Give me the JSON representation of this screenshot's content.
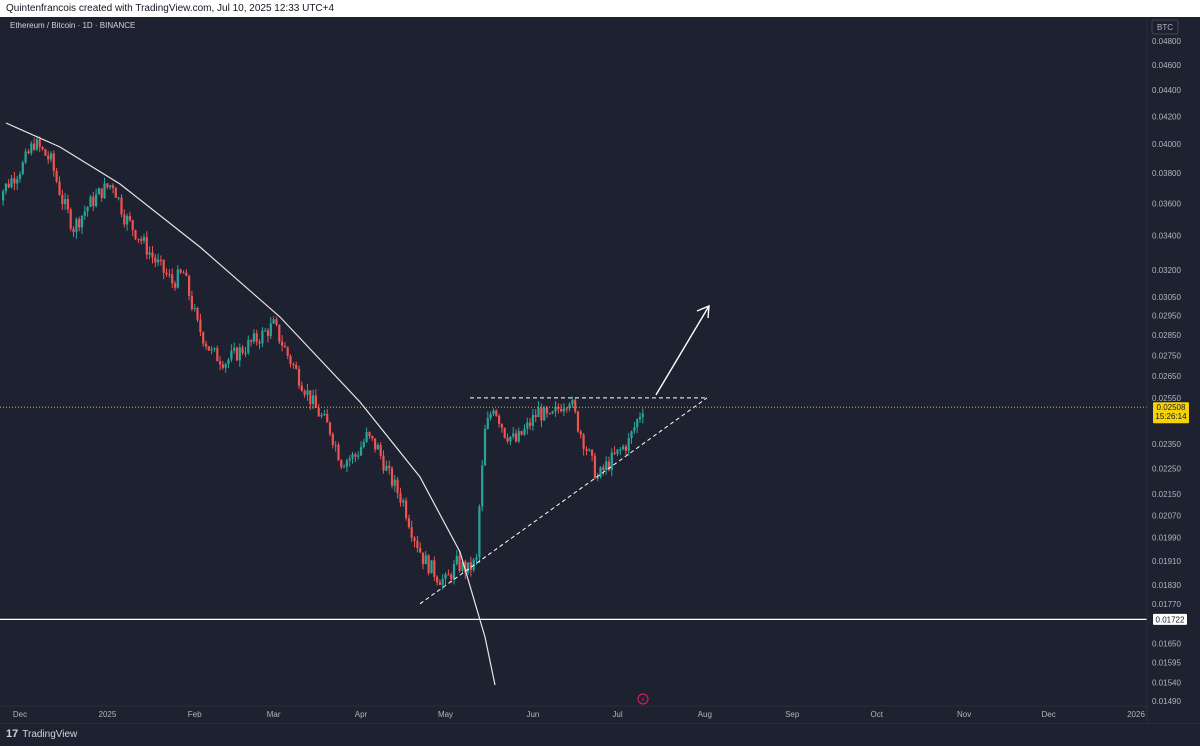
{
  "header": {
    "attribution": "Quintenfrancois created with TradingView.com, Jul 10, 2025 12:33 UTC+4"
  },
  "footer": {
    "brand": "TradingView",
    "brand_mark": "17"
  },
  "colors": {
    "background": "#1e2130",
    "up": "#26a69a",
    "down": "#ef5350",
    "last_price": "#f5d20a",
    "support": "#ffffff"
  },
  "chart_data": {
    "type": "candlestick",
    "title": "Ethereum / Bitcoin · 1D · BINANCE",
    "currency": "BTC",
    "scale": "log",
    "ylim": [
      0.0148,
      0.0495
    ],
    "x_ticks": [
      "Dec",
      "2025",
      "Feb",
      "Mar",
      "Apr",
      "May",
      "Jun",
      "Jul",
      "Aug",
      "Sep",
      "Oct",
      "Nov",
      "Dec",
      "2026"
    ],
    "y_ticks": [
      "0.04800",
      "0.04600",
      "0.04400",
      "0.04200",
      "0.04000",
      "0.03800",
      "0.03600",
      "0.03400",
      "0.03200",
      "0.03050",
      "0.02950",
      "0.02850",
      "0.02750",
      "0.02650",
      "0.02550",
      "0.02350",
      "0.02250",
      "0.02150",
      "0.02070",
      "0.01990",
      "0.01910",
      "0.01830",
      "0.01770",
      "0.01650",
      "0.01595",
      "0.01540",
      "0.01490"
    ],
    "last_price": {
      "value": 0.02508,
      "label": "0.02508",
      "countdown": "15:26:14"
    },
    "support_level": {
      "value": 0.01722,
      "label": "0.01722"
    },
    "close_path": [
      {
        "date": "2024-11-22",
        "close": 0.0362
      },
      {
        "date": "2024-12-02",
        "close": 0.0385
      },
      {
        "date": "2024-12-06",
        "close": 0.0401
      },
      {
        "date": "2024-12-12",
        "close": 0.0388
      },
      {
        "date": "2024-12-16",
        "close": 0.0362
      },
      {
        "date": "2024-12-20",
        "close": 0.0345
      },
      {
        "date": "2024-12-25",
        "close": 0.0358
      },
      {
        "date": "2024-12-30",
        "close": 0.0368
      },
      {
        "date": "2025-01-03",
        "close": 0.0373
      },
      {
        "date": "2025-01-07",
        "close": 0.0352
      },
      {
        "date": "2025-01-12",
        "close": 0.034
      },
      {
        "date": "2025-01-18",
        "close": 0.0325
      },
      {
        "date": "2025-01-24",
        "close": 0.0313
      },
      {
        "date": "2025-01-28",
        "close": 0.0318
      },
      {
        "date": "2025-02-02",
        "close": 0.029
      },
      {
        "date": "2025-02-07",
        "close": 0.0276
      },
      {
        "date": "2025-02-12",
        "close": 0.0272
      },
      {
        "date": "2025-02-18",
        "close": 0.0278
      },
      {
        "date": "2025-02-24",
        "close": 0.0284
      },
      {
        "date": "2025-03-01",
        "close": 0.029
      },
      {
        "date": "2025-03-06",
        "close": 0.0275
      },
      {
        "date": "2025-03-11",
        "close": 0.0262
      },
      {
        "date": "2025-03-16",
        "close": 0.025
      },
      {
        "date": "2025-03-21",
        "close": 0.0241
      },
      {
        "date": "2025-03-25",
        "close": 0.0228
      },
      {
        "date": "2025-03-30",
        "close": 0.023
      },
      {
        "date": "2025-04-03",
        "close": 0.0238
      },
      {
        "date": "2025-04-07",
        "close": 0.0233
      },
      {
        "date": "2025-04-11",
        "close": 0.0222
      },
      {
        "date": "2025-04-16",
        "close": 0.0212
      },
      {
        "date": "2025-04-19",
        "close": 0.0202
      },
      {
        "date": "2025-04-23",
        "close": 0.0192
      },
      {
        "date": "2025-04-28",
        "close": 0.0186
      },
      {
        "date": "2025-05-01",
        "close": 0.0184
      },
      {
        "date": "2025-05-05",
        "close": 0.019
      },
      {
        "date": "2025-05-09",
        "close": 0.0188
      },
      {
        "date": "2025-05-12",
        "close": 0.0191
      },
      {
        "date": "2025-05-13",
        "close": 0.021
      },
      {
        "date": "2025-05-15",
        "close": 0.024
      },
      {
        "date": "2025-05-18",
        "close": 0.0252
      },
      {
        "date": "2025-05-22",
        "close": 0.024
      },
      {
        "date": "2025-05-26",
        "close": 0.0236
      },
      {
        "date": "2025-05-30",
        "close": 0.0242
      },
      {
        "date": "2025-06-03",
        "close": 0.0249
      },
      {
        "date": "2025-06-07",
        "close": 0.0245
      },
      {
        "date": "2025-06-11",
        "close": 0.0252
      },
      {
        "date": "2025-06-14",
        "close": 0.0255
      },
      {
        "date": "2025-06-17",
        "close": 0.0243
      },
      {
        "date": "2025-06-21",
        "close": 0.023
      },
      {
        "date": "2025-06-24",
        "close": 0.0221
      },
      {
        "date": "2025-06-27",
        "close": 0.0226
      },
      {
        "date": "2025-07-01",
        "close": 0.0231
      },
      {
        "date": "2025-07-05",
        "close": 0.0236
      },
      {
        "date": "2025-07-08",
        "close": 0.0245
      },
      {
        "date": "2025-07-10",
        "close": 0.0251
      }
    ]
  }
}
